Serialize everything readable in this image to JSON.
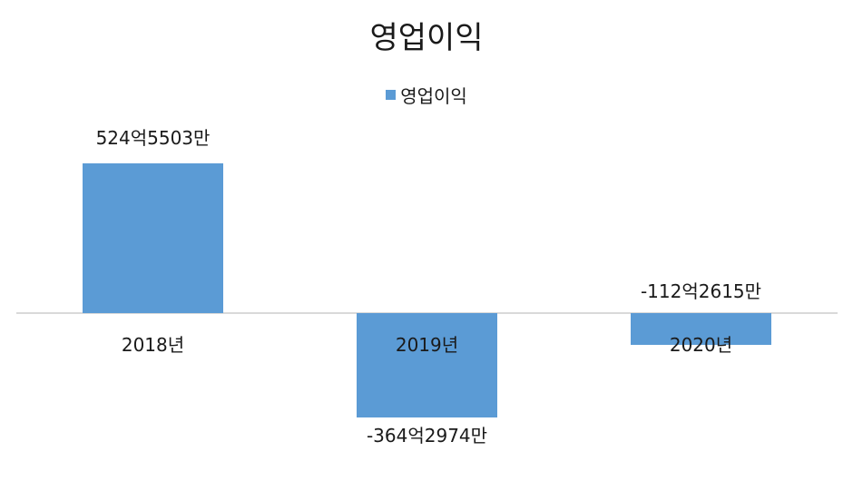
{
  "chart_data": {
    "type": "bar",
    "title": "영업이익",
    "legend": [
      "영업이익"
    ],
    "legend_position": "top",
    "categories": [
      "2018년",
      "2019년",
      "2020년"
    ],
    "values": [
      52455030000,
      -36429740000,
      -11226150000
    ],
    "data_labels": [
      "524억5503만",
      "-364억2974만",
      "-112억2615만"
    ],
    "series": [
      {
        "name": "영업이익",
        "values": [
          52455030000,
          -36429740000,
          -11226150000
        ],
        "color": "#5b9bd5"
      }
    ],
    "xlabel": "",
    "ylabel": "",
    "grid": false
  },
  "colors": {
    "bar": "#5b9bd5",
    "axis": "#d9d9d9"
  }
}
